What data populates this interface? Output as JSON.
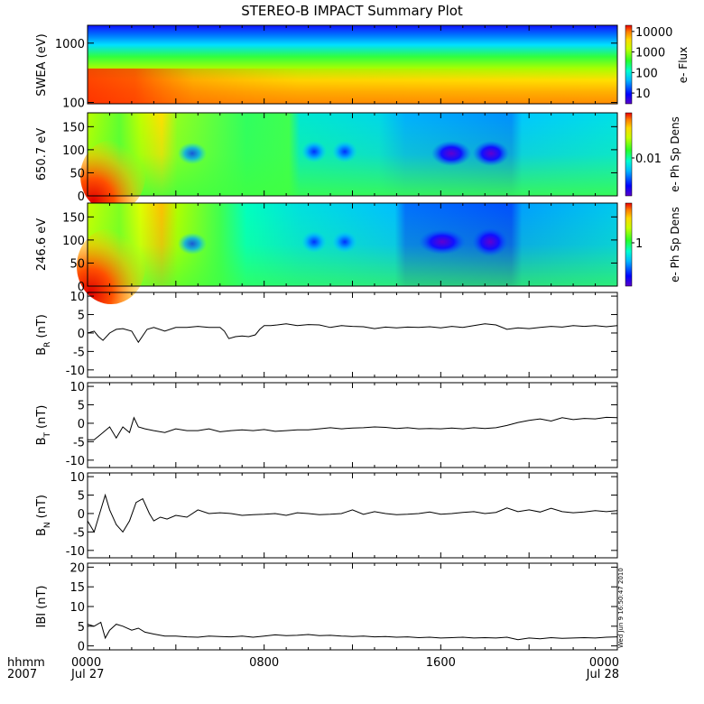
{
  "title": "STEREO-B IMPACT Summary Plot",
  "chart_data": [
    {
      "type": "heatmap",
      "ylabel": "SWEA (eV)",
      "ylog": true,
      "ylim": [
        95,
        2000
      ],
      "ytick_labels": [
        "1000",
        "100"
      ],
      "ytick_values": [
        1000,
        100
      ],
      "colorbar": {
        "label": "e- Flux",
        "log": true,
        "range": [
          3,
          20000
        ],
        "tick_labels": [
          "10000",
          "1000",
          "100",
          "10"
        ],
        "tick_values": [
          10000,
          1000,
          100,
          10
        ]
      }
    },
    {
      "type": "heatmap",
      "ylabel": "650.7 eV",
      "ylim": [
        0,
        180
      ],
      "ytick_labels": [
        "150",
        "100",
        "50",
        "0"
      ],
      "ytick_values": [
        150,
        100,
        50,
        0
      ],
      "colorbar": {
        "label": "e- Ph Sp Dens",
        "tick_labels": [
          "0.01"
        ],
        "tick_values": [
          0.01
        ]
      }
    },
    {
      "type": "heatmap",
      "ylabel": "246.6 eV",
      "ylim": [
        0,
        180
      ],
      "ytick_labels": [
        "150",
        "100",
        "50",
        "0"
      ],
      "ytick_values": [
        150,
        100,
        50,
        0
      ],
      "colorbar": {
        "label": "e- Ph Sp Dens",
        "tick_labels": [
          "1"
        ],
        "tick_values": [
          1
        ]
      }
    },
    {
      "type": "line",
      "ylabel": "B",
      "ylabel_sub": "R",
      "ylabel_unit": "(nT)",
      "ylim": [
        -12,
        11
      ],
      "ytick_labels": [
        "10",
        "5",
        "0",
        "-5",
        "-10"
      ],
      "ytick_values": [
        10,
        5,
        0,
        -5,
        -10
      ],
      "series": [
        {
          "x": [
            0,
            0.3,
            0.5,
            0.7,
            1,
            1.3,
            1.6,
            2,
            2.3,
            2.7,
            3,
            3.5,
            4,
            4.5,
            5,
            5.5,
            6,
            6.2,
            6.4,
            6.7,
            7,
            7.3,
            7.6,
            7.8,
            8,
            8.3,
            8.6,
            9,
            9.5,
            10,
            10.5,
            11,
            11.5,
            12,
            12.5,
            13,
            13.5,
            14,
            14.5,
            15,
            15.5,
            16,
            16.5,
            17,
            17.5,
            18,
            18.5,
            19,
            19.5,
            20,
            20.5,
            21,
            21.5,
            22,
            22.5,
            23,
            23.5,
            24
          ],
          "y": [
            0,
            0.5,
            -1,
            -2,
            0,
            1,
            1.2,
            0.5,
            -2.5,
            1,
            1.5,
            0.5,
            1.5,
            1.5,
            1.8,
            1.5,
            1.5,
            0.5,
            -1.5,
            -1,
            -0.8,
            -1,
            -0.5,
            1,
            2,
            2,
            2.2,
            2.5,
            2,
            2.3,
            2.2,
            1.5,
            2,
            1.8,
            1.7,
            1.2,
            1.6,
            1.4,
            1.6,
            1.5,
            1.7,
            1.4,
            1.8,
            1.5,
            2,
            2.5,
            2.2,
            1,
            1.4,
            1.2,
            1.5,
            1.8,
            1.6,
            2,
            1.8,
            2,
            1.7,
            2
          ]
        }
      ]
    },
    {
      "type": "line",
      "ylabel": "B",
      "ylabel_sub": "T",
      "ylabel_unit": "(nT)",
      "ylim": [
        -12,
        11
      ],
      "ytick_labels": [
        "10",
        "5",
        "0",
        "-5",
        "-10"
      ],
      "ytick_values": [
        10,
        5,
        0,
        -5,
        -10
      ],
      "series": [
        {
          "x": [
            0,
            0.3,
            0.6,
            1,
            1.3,
            1.6,
            1.9,
            2.1,
            2.3,
            2.6,
            3,
            3.5,
            4,
            4.5,
            5,
            5.5,
            6,
            6.5,
            7,
            7.5,
            8,
            8.5,
            9,
            9.5,
            10,
            10.5,
            11,
            11.5,
            12,
            12.5,
            13,
            13.5,
            14,
            14.5,
            15,
            15.5,
            16,
            16.5,
            17,
            17.5,
            18,
            18.5,
            19,
            19.5,
            20,
            20.5,
            21,
            21.5,
            22,
            22.5,
            23,
            23.5,
            24
          ],
          "y": [
            -4.5,
            -4.5,
            -3,
            -1,
            -4,
            -1,
            -2.5,
            1.5,
            -1,
            -1.5,
            -2,
            -2.5,
            -1.5,
            -2,
            -2,
            -1.5,
            -2.3,
            -2,
            -1.8,
            -2,
            -1.7,
            -2.2,
            -2,
            -1.8,
            -1.8,
            -1.5,
            -1.2,
            -1.5,
            -1.3,
            -1.2,
            -1,
            -1.1,
            -1.4,
            -1.2,
            -1.5,
            -1.4,
            -1.5,
            -1.3,
            -1.5,
            -1.2,
            -1.4,
            -1.2,
            -0.6,
            0.2,
            0.8,
            1.2,
            0.6,
            1.5,
            1,
            1.3,
            1.2,
            1.6,
            1.5
          ]
        }
      ]
    },
    {
      "type": "line",
      "ylabel": "B",
      "ylabel_sub": "N",
      "ylabel_unit": "(nT)",
      "ylim": [
        -12,
        11
      ],
      "ytick_labels": [
        "10",
        "5",
        "0",
        "-5",
        "-10"
      ],
      "ytick_values": [
        10,
        5,
        0,
        -5,
        -10
      ],
      "series": [
        {
          "x": [
            0,
            0.3,
            0.5,
            0.8,
            1,
            1.3,
            1.6,
            1.9,
            2.2,
            2.5,
            2.8,
            3,
            3.3,
            3.6,
            4,
            4.5,
            5,
            5.5,
            6,
            6.5,
            7,
            7.5,
            8,
            8.5,
            9,
            9.5,
            10,
            10.5,
            11,
            11.5,
            12,
            12.5,
            13,
            13.5,
            14,
            14.5,
            15,
            15.5,
            16,
            16.5,
            17,
            17.5,
            18,
            18.5,
            19,
            19.5,
            20,
            20.5,
            21,
            21.5,
            22,
            22.5,
            23,
            23.5,
            24
          ],
          "y": [
            -2,
            -5,
            -1,
            5,
            1,
            -3,
            -5,
            -2,
            3,
            4,
            0,
            -2,
            -1,
            -1.5,
            -0.5,
            -1,
            1,
            0,
            0.2,
            0,
            -0.5,
            -0.3,
            -0.2,
            0,
            -0.5,
            0.2,
            0,
            -0.3,
            -0.2,
            0,
            1,
            -0.2,
            0.5,
            0,
            -0.3,
            -0.2,
            0,
            0.4,
            -0.2,
            0,
            0.3,
            0.5,
            0,
            0.3,
            1.5,
            0.5,
            1,
            0.4,
            1.4,
            0.5,
            0.2,
            0.4,
            0.8,
            0.5,
            0.8
          ]
        }
      ]
    },
    {
      "type": "line",
      "ylabel": "IBI",
      "ylabel_unit": "(nT)",
      "ylim": [
        -1,
        21
      ],
      "ytick_labels": [
        "20",
        "15",
        "10",
        "5",
        "0"
      ],
      "ytick_values": [
        20,
        15,
        10,
        5,
        0
      ],
      "series": [
        {
          "x": [
            0,
            0.3,
            0.6,
            0.8,
            1,
            1.3,
            1.6,
            2,
            2.3,
            2.6,
            3,
            3.5,
            4,
            4.5,
            5,
            5.5,
            6,
            6.5,
            7,
            7.5,
            8,
            8.5,
            9,
            9.5,
            10,
            10.5,
            11,
            11.5,
            12,
            12.5,
            13,
            13.5,
            14,
            14.5,
            15,
            15.5,
            16,
            16.5,
            17,
            17.5,
            18,
            18.5,
            19,
            19.5,
            20,
            20.5,
            21,
            21.5,
            22,
            22.5,
            23,
            23.5,
            24
          ],
          "y": [
            5.5,
            5,
            6,
            2,
            4,
            5.5,
            5,
            4,
            4.5,
            3.5,
            3,
            2.5,
            2.5,
            2.3,
            2.2,
            2.5,
            2.4,
            2.3,
            2.5,
            2.2,
            2.5,
            2.8,
            2.6,
            2.7,
            2.9,
            2.6,
            2.7,
            2.5,
            2.4,
            2.5,
            2.3,
            2.4,
            2.2,
            2.3,
            2.1,
            2.2,
            2,
            2.1,
            2.2,
            2,
            2.1,
            2,
            2.2,
            1.6,
            2,
            1.8,
            2.1,
            1.9,
            2,
            2.1,
            2,
            2.2,
            2.3
          ]
        }
      ]
    }
  ],
  "x_axis": {
    "xlim": [
      0,
      24
    ],
    "tick_values": [
      0,
      8,
      16,
      24
    ],
    "tick_labels": [
      "0000",
      "0800",
      "1600",
      "0000"
    ],
    "date_labels": [
      "Jul 27",
      "",
      "",
      "Jul 28"
    ],
    "left_label_top": "hhmm",
    "left_label_bottom": "2007"
  },
  "side_stamp": "Wed Jun 9 16:50:47 2010"
}
